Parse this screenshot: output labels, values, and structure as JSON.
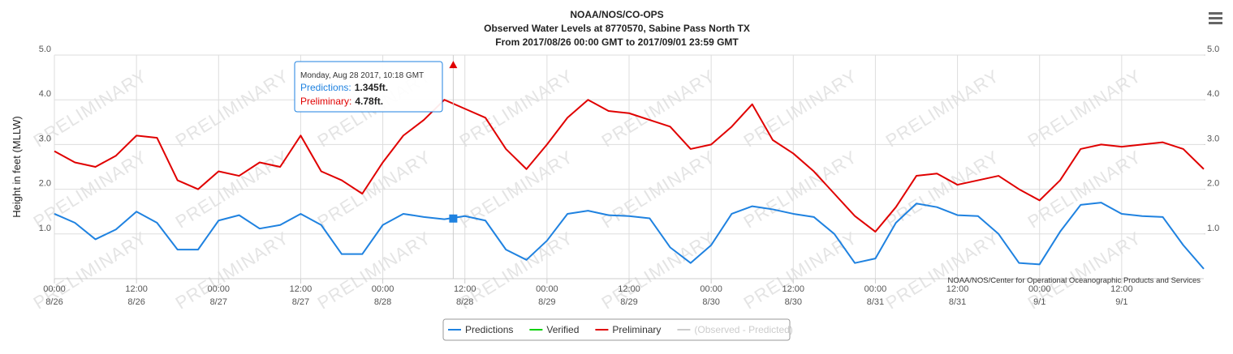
{
  "chart_data": {
    "type": "line",
    "title": "NOAA/NOS/CO-OPS",
    "subtitle": "Observed Water Levels at 8770570, Sabine Pass North TX",
    "subtitle2": "From 2017/08/26 00:00 GMT to 2017/09/01 23:59 GMT",
    "ylabel": "Height in feet (MLLW)",
    "watermark": "PRELIMINARY",
    "credit": "NOAA/NOS/Center for Operational Oceanographic Products and Services",
    "grid": true,
    "xlim": [
      0,
      168
    ],
    "ylim": [
      0,
      5
    ],
    "y2lim": [
      0,
      5
    ],
    "yticks": [
      {
        "value": 1,
        "label": "1.0"
      },
      {
        "value": 2,
        "label": "2.0"
      },
      {
        "value": 3,
        "label": "3.0"
      },
      {
        "value": 4,
        "label": "4.0"
      },
      {
        "value": 5,
        "label": "5.0"
      }
    ],
    "y2ticks": [
      {
        "value": 1,
        "label": "1.0"
      },
      {
        "value": 2,
        "label": "2.0"
      },
      {
        "value": 3,
        "label": "3.0"
      },
      {
        "value": 4,
        "label": "4.0"
      },
      {
        "value": 5,
        "label": "5.0"
      }
    ],
    "xticks": [
      {
        "value": 0,
        "label": "00:00\n8/26"
      },
      {
        "value": 12,
        "label": "12:00\n8/26"
      },
      {
        "value": 24,
        "label": "00:00\n8/27"
      },
      {
        "value": 36,
        "label": "12:00\n8/27"
      },
      {
        "value": 48,
        "label": "00:00\n8/28"
      },
      {
        "value": 60,
        "label": "12:00\n8/28"
      },
      {
        "value": 72,
        "label": "00:00\n8/29"
      },
      {
        "value": 84,
        "label": "12:00\n8/29"
      },
      {
        "value": 96,
        "label": "00:00\n8/30"
      },
      {
        "value": 108,
        "label": "12:00\n8/30"
      },
      {
        "value": 120,
        "label": "00:00\n8/31"
      },
      {
        "value": 132,
        "label": "12:00\n8/31"
      },
      {
        "value": 144,
        "label": "00:00\n9/1"
      },
      {
        "value": 156,
        "label": "12:00\n9/1"
      }
    ],
    "x": [
      0,
      3,
      6,
      9,
      12,
      15,
      18,
      21,
      24,
      27,
      30,
      33,
      36,
      39,
      42,
      45,
      48,
      51,
      54,
      57,
      60,
      63,
      66,
      69,
      72,
      75,
      78,
      81,
      84,
      87,
      90,
      93,
      96,
      99,
      102,
      105,
      108,
      111,
      114,
      117,
      120,
      123,
      126,
      129,
      132,
      135,
      138,
      141,
      144,
      147,
      150,
      153,
      156,
      159,
      162,
      165,
      168
    ],
    "series": [
      {
        "name": "Predictions",
        "color": "#1f82e0",
        "values": [
          1.45,
          1.25,
          0.88,
          1.1,
          1.5,
          1.25,
          0.65,
          0.65,
          1.3,
          1.42,
          1.12,
          1.2,
          1.45,
          1.2,
          0.55,
          0.55,
          1.2,
          1.45,
          1.38,
          1.33,
          1.4,
          1.3,
          0.65,
          0.42,
          0.85,
          1.45,
          1.52,
          1.42,
          1.4,
          1.35,
          0.7,
          0.35,
          0.75,
          1.45,
          1.62,
          1.55,
          1.45,
          1.38,
          1.0,
          0.35,
          0.45,
          1.25,
          1.68,
          1.6,
          1.42,
          1.4,
          1.0,
          0.35,
          0.32,
          1.05,
          1.65,
          1.7,
          1.45,
          1.4,
          1.38,
          0.75,
          0.22
        ]
      },
      {
        "name": "Verified",
        "color": "#00d000",
        "values": [
          null,
          null,
          null,
          null,
          null,
          null,
          null,
          null,
          null,
          null,
          null,
          null,
          null,
          null,
          null,
          null,
          null,
          null,
          null,
          null,
          null,
          null,
          null,
          null,
          null,
          null,
          null,
          null,
          null,
          null,
          null,
          null,
          null,
          null,
          null,
          null,
          null,
          null,
          null,
          null,
          null,
          null,
          null,
          null,
          null,
          null,
          null,
          null,
          null,
          null,
          null,
          null,
          null,
          null,
          null,
          null,
          null
        ]
      },
      {
        "name": "Preliminary",
        "color": "#e00000",
        "values": [
          2.85,
          2.6,
          2.5,
          2.75,
          3.2,
          3.15,
          2.2,
          2.0,
          2.4,
          2.3,
          2.6,
          2.5,
          3.2,
          2.4,
          2.2,
          1.9,
          2.6,
          3.2,
          3.55,
          4.0,
          3.8,
          3.6,
          2.9,
          2.45,
          3.0,
          3.6,
          4.0,
          3.75,
          3.7,
          3.55,
          3.4,
          2.9,
          3.0,
          3.4,
          3.9,
          3.1,
          2.8,
          2.4,
          1.9,
          1.4,
          1.05,
          1.6,
          2.3,
          2.35,
          2.1,
          2.2,
          2.3,
          2.0,
          1.75,
          2.2,
          2.9,
          3.0,
          2.95,
          3.0,
          3.05,
          2.9,
          2.45
        ]
      },
      {
        "name": "(Observed - Predicted)",
        "color": "#cccccc",
        "values": [
          null,
          null,
          null,
          null,
          null,
          null,
          null,
          null,
          null,
          null,
          null,
          null,
          null,
          null,
          null,
          null,
          null,
          null,
          null,
          null,
          null,
          null,
          null,
          null,
          null,
          null,
          null,
          null,
          null,
          null,
          null,
          null,
          null,
          null,
          null,
          null,
          null,
          null,
          null,
          null,
          null,
          null,
          null,
          null,
          null,
          null,
          null,
          null,
          null,
          null,
          null,
          null,
          null,
          null,
          null,
          null,
          null
        ]
      }
    ],
    "tooltip": {
      "x": 58.3,
      "title": "Monday, Aug 28 2017, 10:18 GMT",
      "entries": [
        {
          "name": "Predictions:",
          "value": 1.345,
          "label": "1.345ft.",
          "color": "#1f82e0"
        },
        {
          "name": "Preliminary:",
          "value": 4.78,
          "label": "4.78ft.",
          "color": "#e00000"
        }
      ]
    }
  }
}
